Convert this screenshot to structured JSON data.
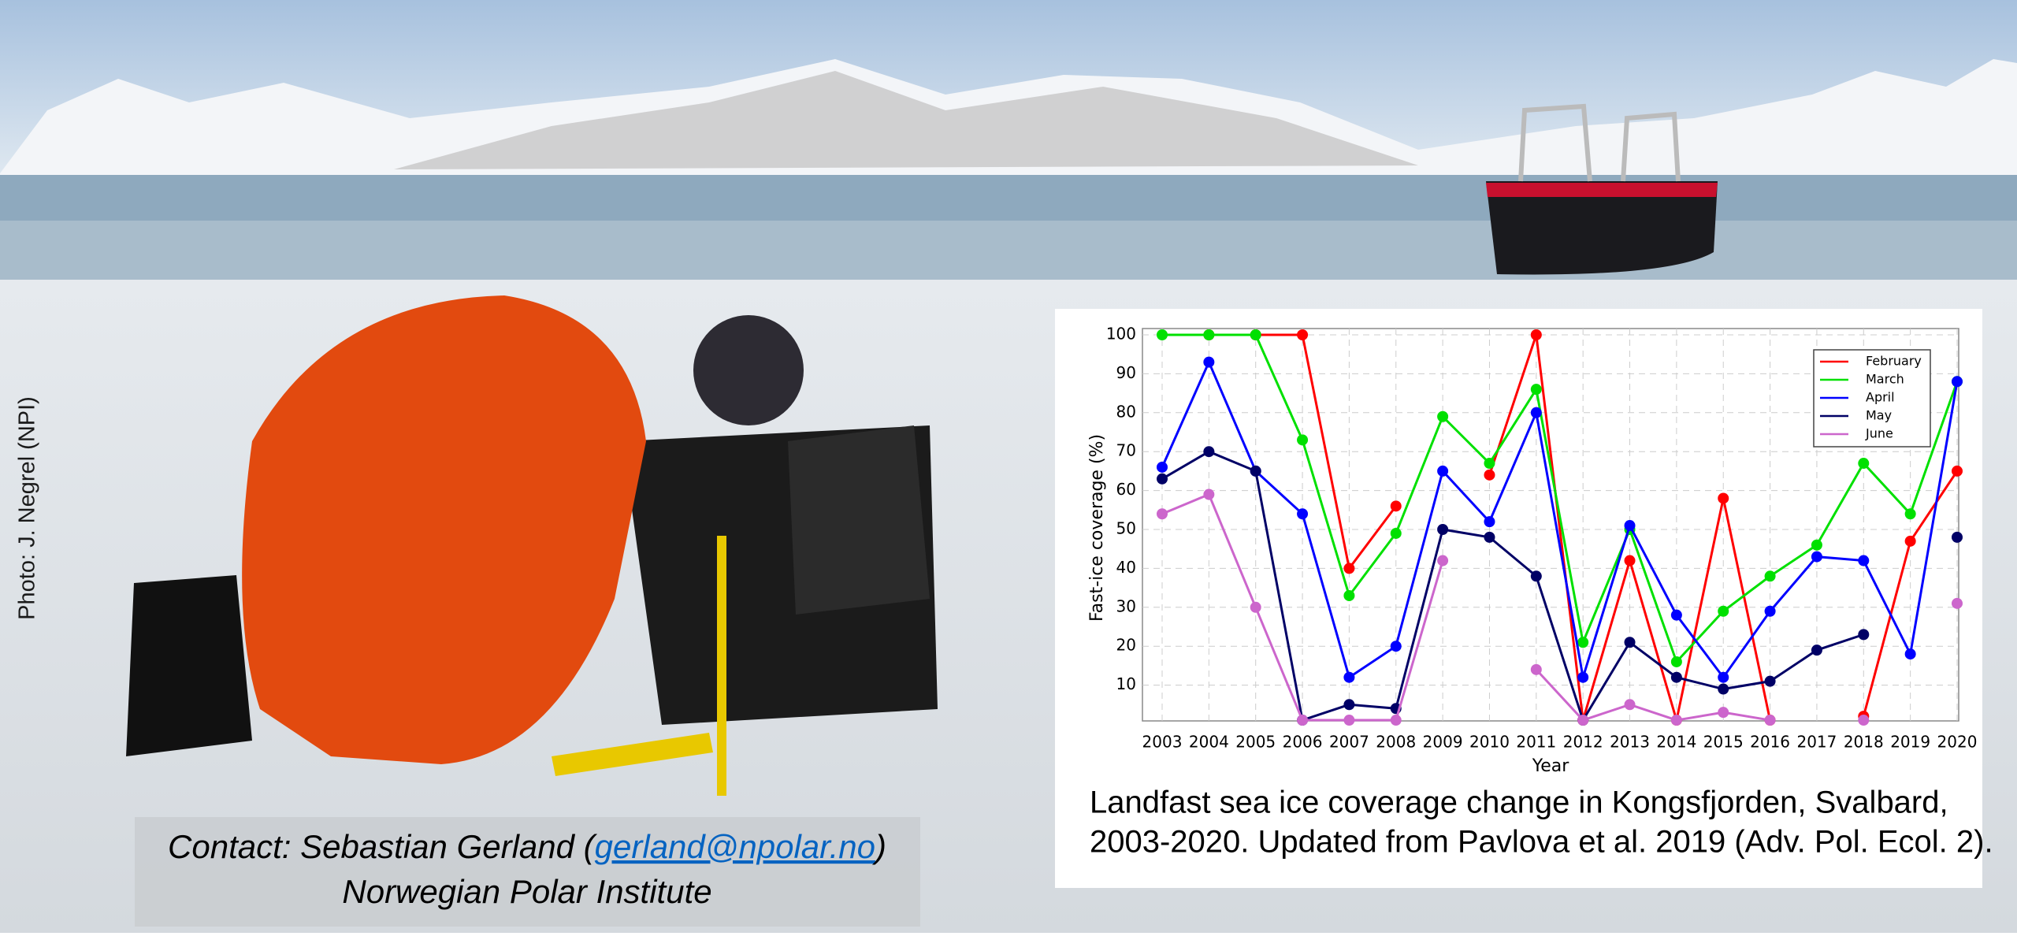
{
  "chart_data": {
    "type": "line",
    "y_label": "Fast-ice coverage (%)",
    "x_label": "Year",
    "categories": [
      "2003",
      "2004",
      "2005",
      "2006",
      "2007",
      "2008",
      "2009",
      "2010",
      "2011",
      "2012",
      "2013",
      "2014",
      "2015",
      "2016",
      "2017",
      "2018",
      "2019",
      "2020"
    ],
    "series": [
      {
        "name": "February",
        "color": "#ff0000",
        "values": [
          null,
          100,
          100,
          100,
          40,
          56,
          null,
          64,
          100,
          1,
          42,
          1,
          58,
          1,
          null,
          2,
          47,
          65
        ]
      },
      {
        "name": "March",
        "color": "#00e000",
        "values": [
          100,
          100,
          100,
          73,
          33,
          49,
          79,
          67,
          86,
          21,
          50,
          16,
          29,
          38,
          46,
          67,
          54,
          88
        ]
      },
      {
        "name": "April",
        "color": "#0000ff",
        "values": [
          66,
          93,
          65,
          54,
          12,
          20,
          65,
          52,
          80,
          12,
          51,
          28,
          12,
          29,
          43,
          42,
          18,
          88
        ]
      },
      {
        "name": "May",
        "color": "#000066",
        "values": [
          63,
          70,
          65,
          1,
          5,
          4,
          50,
          48,
          38,
          1,
          21,
          12,
          9,
          11,
          19,
          23,
          null,
          48
        ]
      },
      {
        "name": "June",
        "color": "#cc66cc",
        "values": [
          54,
          59,
          30,
          1,
          1,
          1,
          42,
          null,
          14,
          1,
          5,
          1,
          3,
          1,
          null,
          1,
          null,
          31
        ]
      }
    ],
    "ylim": [
      0,
      100
    ],
    "yticks": [
      10,
      20,
      30,
      40,
      50,
      60,
      70,
      80,
      90,
      100
    ],
    "grid": true,
    "legend": "upper right"
  },
  "caption": [
    "Landfast sea ice coverage change in Kongsfjorden, Svalbard,",
    "2003-2020. Updated from Pavlova et al. 2019 (Adv. Pol. Ecol. 2)."
  ],
  "photo_credit": "Photo: J. Negrel (NPI)",
  "contact": {
    "before": "Contact: Sebastian Gerland (",
    "email": "gerland@npolar.no",
    "after": ")",
    "institute": "Norwegian Polar Institute"
  }
}
